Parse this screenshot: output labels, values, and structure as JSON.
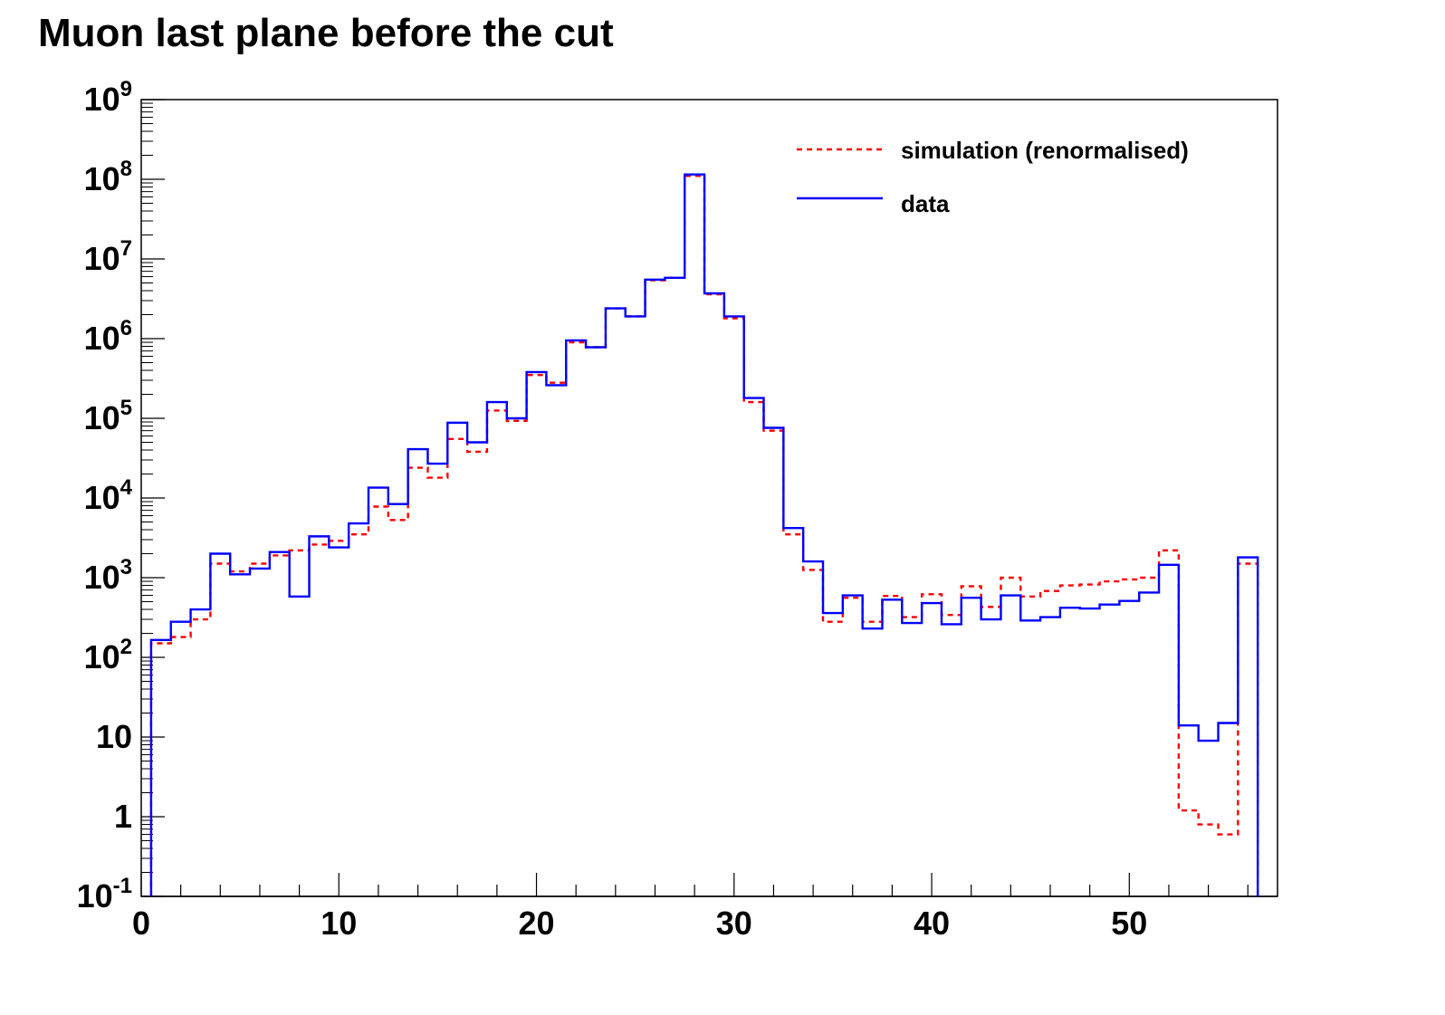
{
  "chart_data": {
    "type": "histogram",
    "title": "Muon last plane before the cut",
    "xlabel": "",
    "ylabel": "",
    "xlim": [
      0,
      57.5
    ],
    "ylim": [
      0.1,
      1000000000
    ],
    "yscale": "log",
    "grid": false,
    "legend_position": "top-right",
    "bin_edges": [
      0.5,
      56.5
    ],
    "bin_width": 1,
    "x_ticks": [
      {
        "value": 0,
        "label": "0"
      },
      {
        "value": 10,
        "label": "10"
      },
      {
        "value": 20,
        "label": "20"
      },
      {
        "value": 30,
        "label": "30"
      },
      {
        "value": 40,
        "label": "40"
      },
      {
        "value": 50,
        "label": "50"
      }
    ],
    "y_ticks": [
      {
        "value": 0.1,
        "base": "10",
        "exp": "-1"
      },
      {
        "value": 1,
        "base": "1",
        "exp": ""
      },
      {
        "value": 10,
        "base": "10",
        "exp": ""
      },
      {
        "value": 100,
        "base": "10",
        "exp": "2"
      },
      {
        "value": 1000,
        "base": "10",
        "exp": "3"
      },
      {
        "value": 10000,
        "base": "10",
        "exp": "4"
      },
      {
        "value": 100000,
        "base": "10",
        "exp": "5"
      },
      {
        "value": 1000000,
        "base": "10",
        "exp": "6"
      },
      {
        "value": 10000000,
        "base": "10",
        "exp": "7"
      },
      {
        "value": 100000000,
        "base": "10",
        "exp": "8"
      },
      {
        "value": 1000000000,
        "base": "10",
        "exp": "9"
      }
    ],
    "series": [
      {
        "name": "simulation (renormalised)",
        "color": "#ff0000",
        "style": "dashed",
        "values": [
          150,
          180,
          300,
          1500,
          1200,
          1500,
          1900,
          2200,
          2600,
          2900,
          3500,
          7800,
          5300,
          24000,
          18000,
          55000,
          38000,
          125000,
          93000,
          350000,
          280000,
          900000,
          780000,
          2400000,
          1900000,
          5400000,
          5800000,
          110000000,
          3600000,
          1800000,
          160000,
          70000,
          3500,
          1250,
          280,
          560,
          280,
          590,
          320,
          620,
          340,
          780,
          430,
          1000,
          580,
          680,
          800,
          820,
          900,
          950,
          1000,
          2200,
          1.2,
          0.8,
          0.6,
          1500
        ]
      },
      {
        "name": "data",
        "color": "#0000ff",
        "style": "solid",
        "values": [
          165,
          280,
          400,
          2000,
          1100,
          1300,
          2100,
          580,
          3300,
          2400,
          4800,
          13500,
          8400,
          41000,
          27000,
          88000,
          50000,
          160000,
          100000,
          380000,
          260000,
          950000,
          780000,
          2400000,
          1900000,
          5500000,
          5800000,
          115000000,
          3700000,
          1900000,
          180000,
          76000,
          4200,
          1600,
          360,
          600,
          230,
          530,
          270,
          480,
          260,
          560,
          300,
          600,
          290,
          320,
          420,
          410,
          460,
          510,
          650,
          1450,
          14,
          9,
          15,
          1800
        ]
      }
    ]
  }
}
